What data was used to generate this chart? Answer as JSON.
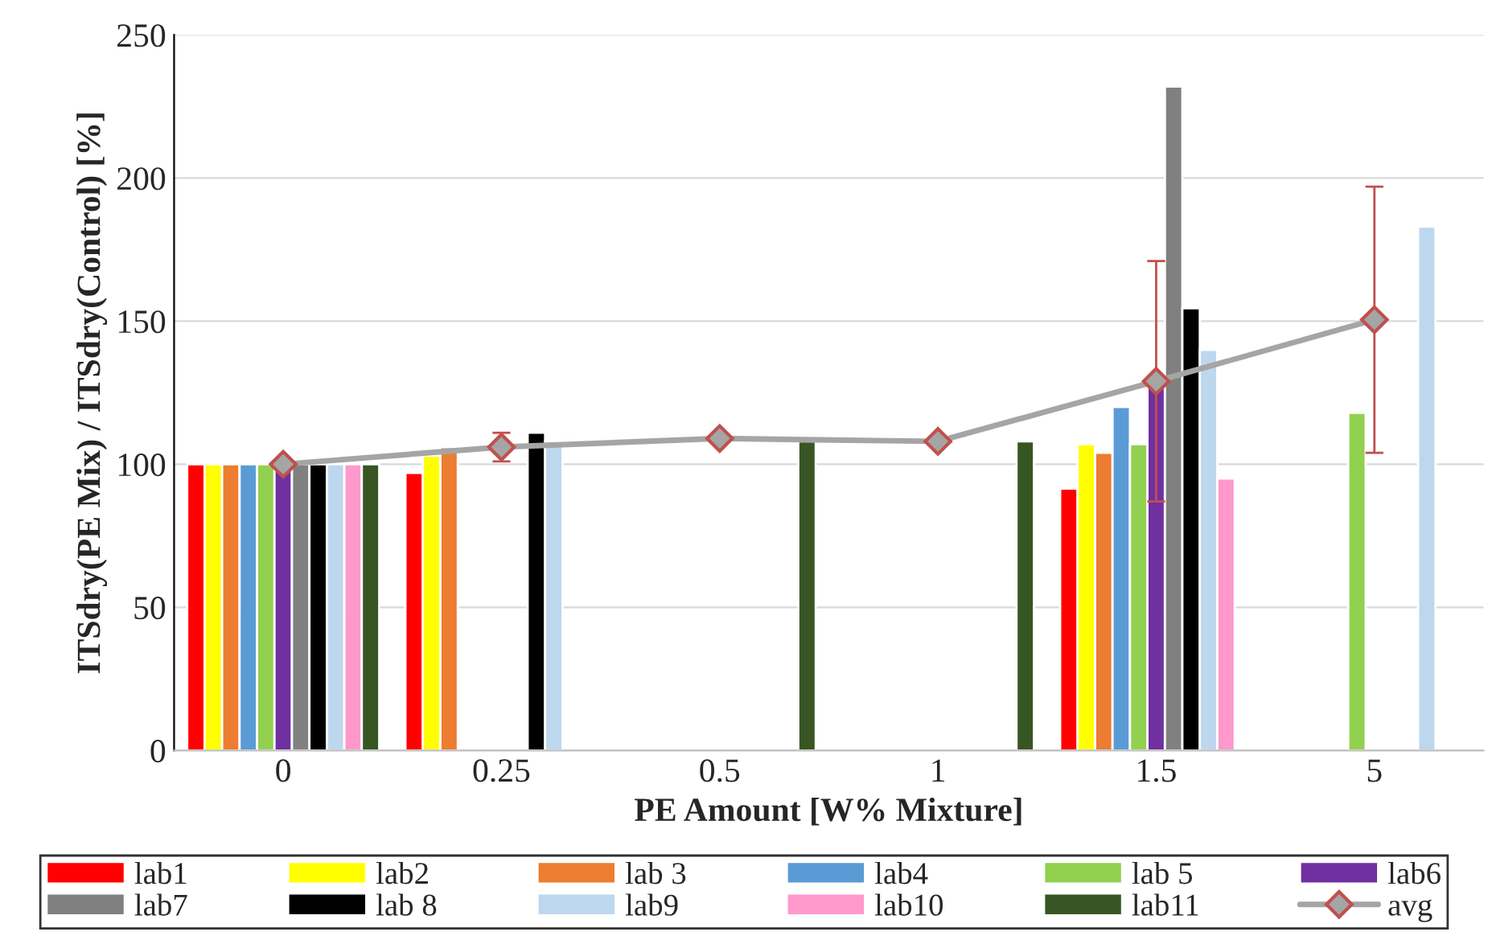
{
  "chart_data": {
    "type": "bar",
    "xlabel": "PE Amount [W% Mixture]",
    "ylabel": "ITSdry(PE Mix) / ITSdry(Control) [%]",
    "categories": [
      "0",
      "0.25",
      "0.5",
      "1",
      "1.5",
      "5"
    ],
    "ylim": [
      0,
      250
    ],
    "yticks": [
      0,
      50,
      100,
      150,
      200,
      250
    ],
    "grid": "y",
    "legend": "bottom",
    "series": [
      {
        "name": "lab1",
        "color": "#ff0000",
        "values": [
          100,
          97,
          null,
          null,
          91.5,
          null
        ]
      },
      {
        "name": "lab2",
        "color": "#ffff00",
        "values": [
          100,
          103,
          null,
          null,
          107,
          null
        ]
      },
      {
        "name": "lab 3",
        "color": "#ed7d31",
        "values": [
          100,
          106,
          null,
          null,
          104,
          null
        ]
      },
      {
        "name": "lab4",
        "color": "#5b9bd5",
        "values": [
          100,
          null,
          null,
          null,
          120,
          null
        ]
      },
      {
        "name": "lab 5",
        "color": "#92d050",
        "values": [
          100,
          null,
          null,
          null,
          107,
          118
        ]
      },
      {
        "name": "lab6",
        "color": "#7030a0",
        "values": [
          100,
          null,
          null,
          null,
          128,
          null
        ]
      },
      {
        "name": "lab7",
        "color": "#808080",
        "values": [
          100,
          null,
          null,
          null,
          232,
          null
        ]
      },
      {
        "name": "lab 8",
        "color": "#000000",
        "values": [
          100,
          111,
          null,
          null,
          154.5,
          null
        ]
      },
      {
        "name": "lab9",
        "color": "#bdd7ee",
        "values": [
          100,
          108,
          null,
          null,
          140,
          183
        ]
      },
      {
        "name": "lab10",
        "color": "#ff99cc",
        "values": [
          100,
          null,
          null,
          null,
          95,
          null
        ]
      },
      {
        "name": "lab11",
        "color": "#375623",
        "values": [
          100,
          null,
          108,
          108,
          null,
          null
        ]
      },
      {
        "name": "avg",
        "type": "line",
        "color": "#a5a5a5",
        "marker": "diamond",
        "values": [
          100,
          106,
          109,
          108,
          129,
          150.5
        ],
        "errors": [
          null,
          5,
          null,
          null,
          42,
          46.5
        ]
      }
    ]
  }
}
